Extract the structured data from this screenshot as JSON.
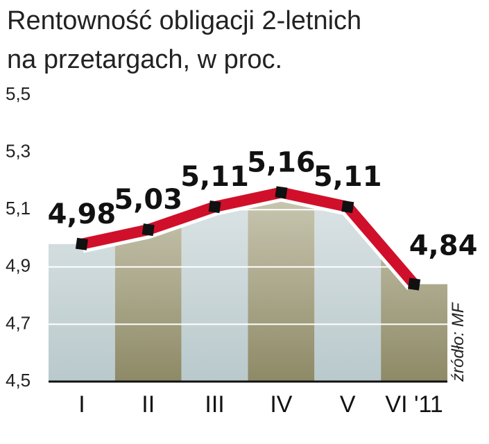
{
  "chart_data": {
    "type": "line",
    "title": [
      "Rentowność obligacji 2-letnich",
      "na przetargach, w proc."
    ],
    "source": "źródło: MF",
    "categories": [
      "I",
      "II",
      "III",
      "IV",
      "V",
      "VI '11"
    ],
    "values": [
      4.98,
      5.03,
      5.11,
      5.16,
      5.11,
      4.84
    ],
    "value_labels": [
      "4,98",
      "5,03",
      "5,11",
      "5,16",
      "5,11",
      "4,84"
    ],
    "color": "#d0102a",
    "ylim": [
      4.5,
      5.5
    ],
    "yticks": [
      {
        "value": 4.5,
        "label": "4,5"
      },
      {
        "value": 4.7,
        "label": "4,7"
      },
      {
        "value": 4.9,
        "label": "4,9"
      },
      {
        "value": 5.1,
        "label": "5,1"
      },
      {
        "value": 5.3,
        "label": "5,3"
      },
      {
        "value": 5.5,
        "label": "5,5"
      }
    ],
    "grid": true
  }
}
